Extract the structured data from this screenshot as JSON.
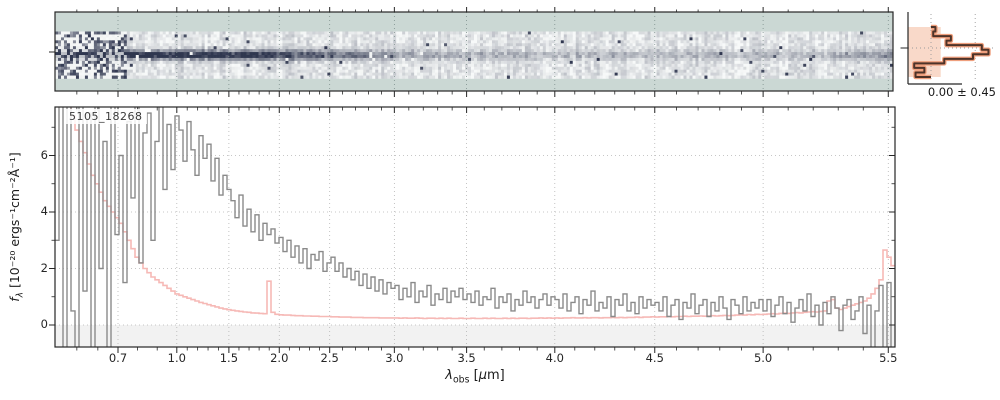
{
  "labels": {
    "object_id": "5105_18268",
    "hist_annotation": "0.00 ± 0.45",
    "xlabel": {
      "symbol": "λ",
      "sub": "obs",
      "bracket": " [",
      "mu": "μ",
      "rest": "m]"
    },
    "ylabel": {
      "symbol": "f",
      "sub": "λ",
      "unit": " [10⁻²⁰ ergs⁻¹cm⁻²Å⁻¹]"
    }
  },
  "colors": {
    "background": "#ffffff",
    "flux_line": "#8a8a8a",
    "error_line": "#f6b9b6",
    "grid": "#b5b5b5",
    "spine": "#262626",
    "below_zero_shade": "#f2f2f2",
    "heatmap_background": "#cbd8d4",
    "heatmap_dark": "#141a38",
    "hist_line": "#4d3329",
    "hist_halo": "#ef9f7d",
    "hist_band": "#f9d9c9",
    "dotted_crosshair": "#9a9a9a",
    "tick_label": "#262626"
  },
  "chart_data": [
    {
      "type": "heatmap",
      "name": "2d-spectrum-strip",
      "description": "Rectified 2D NIRSpec prism spectrum, wavelength along x, spatial along y; dark trace at center row on light mottled band over teal masked background",
      "trace_center_row_frac": 0.47,
      "noise_seed": 20240507,
      "grid_cols": 280,
      "grid_rows": 16,
      "xlim_lambda_um": [
        0.49,
        5.53
      ],
      "gridlines_at_um": [
        0.7,
        1.0,
        1.5,
        2.0,
        2.5,
        3.0,
        3.5,
        4.0,
        4.5,
        5.0,
        5.5
      ]
    },
    {
      "type": "line",
      "name": "1d-spectrum",
      "label": "5105_18268",
      "xlabel": "λ_obs [μm]",
      "ylabel": "f_λ [10⁻²⁰ ergs⁻¹cm⁻²Å⁻¹]",
      "x_scale": "nirspec-prism-pixel (nonlinear in wavelength)",
      "x_ticks": [
        {
          "label": "0.7",
          "lambda": 0.7
        },
        {
          "label": "1.0",
          "lambda": 1.0
        },
        {
          "label": "1.5",
          "lambda": 1.5
        },
        {
          "label": "2.0",
          "lambda": 2.0
        },
        {
          "label": "2.5",
          "lambda": 2.5
        },
        {
          "label": "3.0",
          "lambda": 3.0
        },
        {
          "label": "3.5",
          "lambda": 3.5
        },
        {
          "label": "4.0",
          "lambda": 4.0
        },
        {
          "label": "4.5",
          "lambda": 4.5
        },
        {
          "label": "5.0",
          "lambda": 5.0
        },
        {
          "label": "5.5",
          "lambda": 5.5
        }
      ],
      "x_control_points": [
        [
          0.5,
          0.026
        ],
        [
          0.6,
          0.051
        ],
        [
          0.7,
          0.075
        ],
        [
          1.0,
          0.145
        ],
        [
          1.5,
          0.207
        ],
        [
          2.0,
          0.267
        ],
        [
          2.5,
          0.327
        ],
        [
          3.0,
          0.404
        ],
        [
          3.5,
          0.49
        ],
        [
          4.0,
          0.595
        ],
        [
          4.5,
          0.714
        ],
        [
          5.0,
          0.843
        ],
        [
          5.5,
          0.992
        ]
      ],
      "x_minor_ticks_um": [
        0.5,
        0.6,
        0.8,
        0.9,
        1.1,
        1.2,
        1.3,
        1.4,
        1.6,
        1.7,
        1.8,
        1.9,
        2.1,
        2.2,
        2.3,
        2.4,
        2.6,
        2.7,
        2.8,
        2.9,
        3.1,
        3.2,
        3.3,
        3.4,
        3.6,
        3.7,
        3.8,
        3.9,
        4.1,
        4.2,
        4.3,
        4.4,
        4.6,
        4.7,
        4.8,
        4.9,
        5.1,
        5.2,
        5.3,
        5.4
      ],
      "ylim": [
        -0.78,
        7.7
      ],
      "y_ticks": [
        {
          "label": "0",
          "value": 0
        },
        {
          "label": "2",
          "value": 2
        },
        {
          "label": "4",
          "value": 4
        },
        {
          "label": "6",
          "value": 6
        }
      ],
      "y_minor_ticks": [
        1,
        3,
        5,
        7
      ],
      "grid": "dotted, both axes at major ticks",
      "shade_below_zero": true,
      "series": [
        {
          "name": "uncertainty",
          "style": "step",
          "color_key": "error_line",
          "values": [
            9.5,
            9.0,
            8.4,
            7.9,
            7.4,
            6.9,
            6.5,
            6.1,
            5.7,
            5.3,
            5.0,
            4.7,
            4.4,
            4.2,
            4.0,
            3.8,
            3.6,
            3.3,
            3.0,
            2.7,
            2.4,
            2.2,
            2.0,
            1.85,
            1.7,
            1.6,
            1.5,
            1.4,
            1.3,
            1.2,
            1.1,
            1.05,
            1.0,
            0.95,
            0.9,
            0.85,
            0.8,
            0.76,
            0.72,
            0.68,
            0.64,
            0.6,
            0.57,
            0.54,
            0.52,
            0.5,
            0.48,
            0.46,
            0.45,
            0.43,
            0.42,
            0.41,
            0.4,
            1.55,
            0.45,
            0.38,
            0.36,
            0.35,
            0.35,
            0.34,
            0.33,
            0.33,
            0.32,
            0.32,
            0.31,
            0.31,
            0.3,
            0.3,
            0.3,
            0.29,
            0.29,
            0.28,
            0.28,
            0.28,
            0.27,
            0.27,
            0.27,
            0.26,
            0.26,
            0.26,
            0.26,
            0.25,
            0.25,
            0.25,
            0.25,
            0.25,
            0.24,
            0.25,
            0.24,
            0.24,
            0.25,
            0.24,
            0.23,
            0.24,
            0.24,
            0.23,
            0.24,
            0.23,
            0.24,
            0.23,
            0.23,
            0.24,
            0.23,
            0.23,
            0.24,
            0.23,
            0.23,
            0.24,
            0.23,
            0.24,
            0.23,
            0.23,
            0.24,
            0.23,
            0.24,
            0.23,
            0.24,
            0.24,
            0.23,
            0.24,
            0.24,
            0.25,
            0.24,
            0.25,
            0.24,
            0.25,
            0.24,
            0.25,
            0.25,
            0.26,
            0.25,
            0.25,
            0.26,
            0.25,
            0.26,
            0.26,
            0.25,
            0.26,
            0.26,
            0.27,
            0.26,
            0.27,
            0.26,
            0.27,
            0.27,
            0.28,
            0.27,
            0.28,
            0.28,
            0.29,
            0.28,
            0.29,
            0.29,
            0.3,
            0.29,
            0.3,
            0.3,
            0.31,
            0.3,
            0.31,
            0.31,
            0.32,
            0.31,
            0.32,
            0.33,
            0.32,
            0.33,
            0.34,
            0.33,
            0.34,
            0.35,
            0.36,
            0.35,
            0.37,
            0.36,
            0.38,
            0.37,
            0.38,
            0.39,
            0.4,
            0.39,
            0.41,
            0.42,
            0.41,
            0.43,
            0.44,
            0.43,
            0.45,
            0.46,
            0.47,
            0.46,
            0.48,
            0.5,
            0.85,
            0.9,
            0.6,
            0.55,
            0.6,
            0.65,
            0.7,
            0.75,
            0.8,
            0.85,
            0.95,
            1.1,
            1.3,
            1.6,
            2.65,
            2.4,
            2.1
          ]
        },
        {
          "name": "flux",
          "style": "step",
          "color_key": "flux_line",
          "values": [
            3.0,
            9.0,
            -2.0,
            8.0,
            0.5,
            -1.5,
            9.5,
            1.2,
            7.5,
            -1.0,
            8.5,
            2.0,
            6.5,
            -0.8,
            7.8,
            3.2,
            6.0,
            1.5,
            7.2,
            4.5,
            7.8,
            2.2,
            6.8,
            7.5,
            3.0,
            6.5,
            7.9,
            4.8,
            7.1,
            5.5,
            7.4,
            6.9,
            5.8,
            7.2,
            6.2,
            5.3,
            6.7,
            5.9,
            6.4,
            5.1,
            5.9,
            4.6,
            5.3,
            4.8,
            4.4,
            3.8,
            4.6,
            3.5,
            4.1,
            3.3,
            3.9,
            3.0,
            3.6,
            3.2,
            3.4,
            2.9,
            3.1,
            2.6,
            3.0,
            2.4,
            2.8,
            2.2,
            2.7,
            2.0,
            2.5,
            2.3,
            2.6,
            1.9,
            2.2,
            2.4,
            1.9,
            2.2,
            1.7,
            2.0,
            1.6,
            1.9,
            1.4,
            1.8,
            1.3,
            1.7,
            1.2,
            1.6,
            1.1,
            1.5,
            1.3,
            1.4,
            0.9,
            1.3,
            1.0,
            1.5,
            0.8,
            1.2,
            1.0,
            1.4,
            0.7,
            1.1,
            0.9,
            1.3,
            0.8,
            1.2,
            1.0,
            1.3,
            0.9,
            1.1,
            0.8,
            1.2,
            0.7,
            1.0,
            0.9,
            1.3,
            0.6,
            1.0,
            0.8,
            1.1,
            0.5,
            0.9,
            0.7,
            1.2,
            0.8,
            1.0,
            0.6,
            0.9,
            1.1,
            0.7,
            1.0,
            0.9,
            0.6,
            1.1,
            0.5,
            0.8,
            1.0,
            0.4,
            0.9,
            0.7,
            1.2,
            0.5,
            0.8,
            0.6,
            1.0,
            0.3,
            0.9,
            0.7,
            1.1,
            0.5,
            0.8,
            0.4,
            1.0,
            0.6,
            0.9,
            0.7,
            0.8,
            0.5,
            1.0,
            0.3,
            0.7,
            0.9,
            0.2,
            0.8,
            0.6,
            1.1,
            0.4,
            0.7,
            0.9,
            0.3,
            0.8,
            0.5,
            1.0,
            0.6,
            0.2,
            0.9,
            0.7,
            0.4,
            1.0,
            0.5,
            0.8,
            0.6,
            0.9,
            0.5,
            0.9,
            0.3,
            0.7,
            1.0,
            0.4,
            0.8,
            0.1,
            0.6,
            0.9,
            0.5,
            1.1,
            0.3,
            0.7,
            0.0,
            0.8,
            0.4,
            1.0,
            0.6,
            -0.2,
            0.7,
            0.9,
            0.2,
            0.5,
            1.0,
            -0.3,
            0.7,
            -1.2,
            0.5,
            1.4,
            -1.8,
            1.5,
            -0.8
          ]
        }
      ]
    },
    {
      "type": "bar",
      "name": "spatial-profile-histogram",
      "orientation": "horizontal",
      "annotation": "0.00 ± 0.45",
      "values": [
        0.1,
        0.05,
        0.45,
        0.35,
        1.15,
        1.3,
        0.95,
        0.3,
        -0.38,
        -0.15,
        -0.35
      ],
      "xlim": [
        -0.52,
        1.45
      ],
      "dotted_reference_values": [
        0.0,
        1.0
      ],
      "shaded_band_x": [
        -0.52,
        0.22
      ]
    }
  ]
}
